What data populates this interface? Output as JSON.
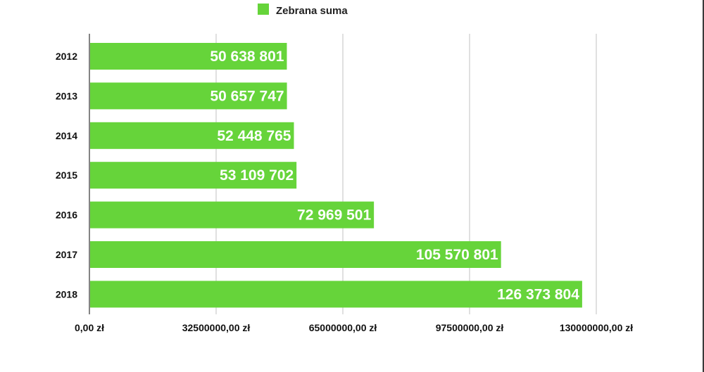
{
  "chart_data": {
    "type": "bar",
    "orientation": "horizontal",
    "categories": [
      "2012",
      "2013",
      "2014",
      "2015",
      "2016",
      "2017",
      "2018"
    ],
    "series": [
      {
        "name": "Zebrana suma",
        "values": [
          50638801,
          50657747,
          52448765,
          53109702,
          72969501,
          105570801,
          126373804
        ],
        "labels": [
          "50 638 801",
          "50 657 747",
          "52 448 765",
          "53 109 702",
          "72 969 501",
          "105 570 801",
          "126 373 804"
        ],
        "color": "#66d43a"
      }
    ],
    "xlim": [
      0,
      130000000
    ],
    "x_ticks": [
      0,
      32500000,
      65000000,
      97500000,
      130000000
    ],
    "x_tick_labels": [
      "0,00 zł",
      "32500000,00 zł",
      "65000000,00 zł",
      "97500000,00 zł",
      "130000000,00 zł"
    ],
    "grid": "vertical",
    "legend_position": "top"
  },
  "colors": {
    "bar": "#66d43a",
    "grid": "#cccccc",
    "axis": "#333333"
  }
}
